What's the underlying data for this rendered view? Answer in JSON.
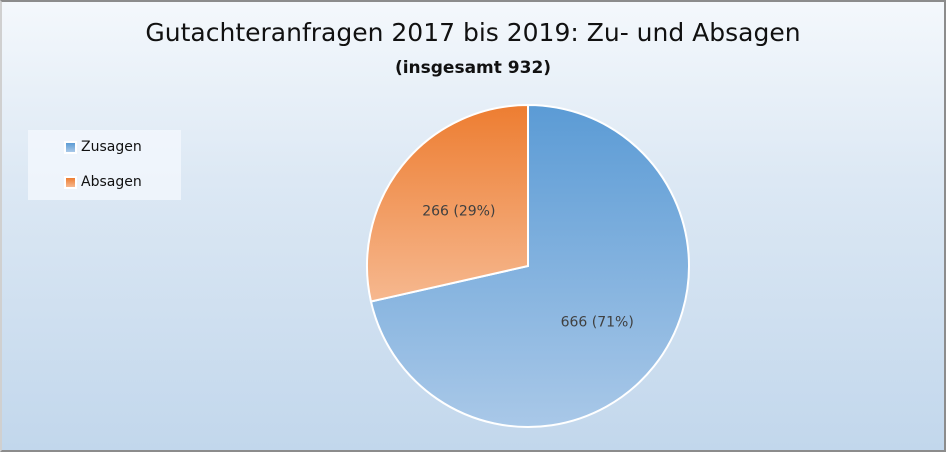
{
  "chart_data": {
    "type": "pie",
    "title": "Gutachteranfragen 2017 bis 2019: Zu- und Absagen",
    "subtitle": "(insgesamt 932)",
    "legend_position": "left",
    "categories": [
      "Zusagen",
      "Absagen"
    ],
    "values": [
      666,
      266
    ],
    "data_labels": [
      "666 (71%)",
      "266 (29%)"
    ],
    "colors": [
      [
        "#5b9bd5",
        "#a9c8e8"
      ],
      [
        "#ed7d31",
        "#f6b88f"
      ]
    ]
  }
}
